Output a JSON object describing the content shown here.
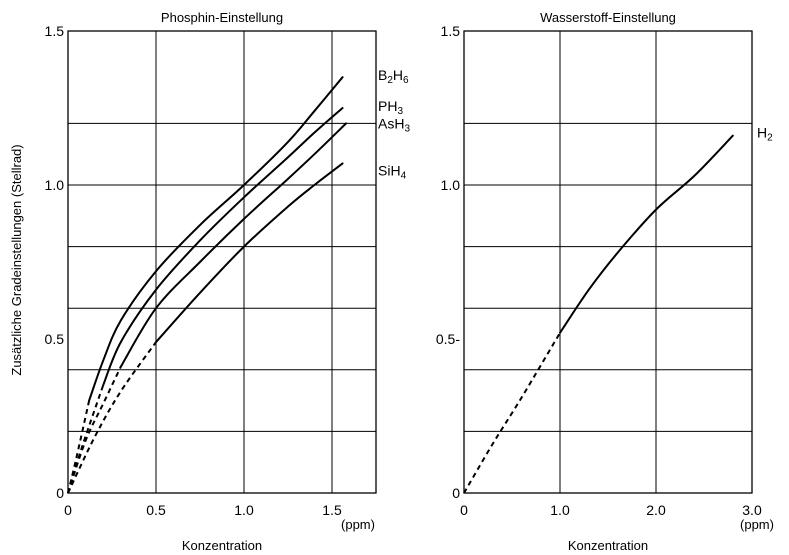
{
  "y_axis_label": "Zusätzliche Gradeinstellungen (Stellrad)",
  "chart_data": [
    {
      "type": "line",
      "title": "Phosphin-Einstellung",
      "xlabel": "Konzentration",
      "x_unit": "(ppm)",
      "ylabel": "Zusätzliche Gradeinstellungen (Stellrad)",
      "xlim": [
        0,
        1.75
      ],
      "ylim": [
        0,
        1.5
      ],
      "x_ticks": [
        {
          "value": 0,
          "label": "0"
        },
        {
          "value": 0.5,
          "label": "0.5"
        },
        {
          "value": 1.0,
          "label": "1.0"
        },
        {
          "value": 1.5,
          "label": "1.5"
        }
      ],
      "y_ticks": [
        {
          "value": 0,
          "label": "0"
        },
        {
          "value": 0.5,
          "label": "0.5"
        },
        {
          "value": 1.0,
          "label": "1.0"
        },
        {
          "value": 1.5,
          "label": "1.5"
        }
      ],
      "grid_y": [
        0.2,
        0.4,
        0.6,
        0.8,
        1.0,
        1.2
      ],
      "grid_x": [
        0.5,
        1.0,
        1.5
      ],
      "grid": true,
      "legend_placement": "right end of each curve",
      "series": [
        {
          "name": "B2H6",
          "label_main": "B",
          "label_sub1": "2",
          "label_mid": "H",
          "label_sub2": "6",
          "dashed_until": 0.12,
          "points": [
            [
              0,
              0
            ],
            [
              0.05,
              0.12
            ],
            [
              0.12,
              0.3
            ],
            [
              0.2,
              0.43
            ],
            [
              0.3,
              0.56
            ],
            [
              0.5,
              0.72
            ],
            [
              0.75,
              0.87
            ],
            [
              1.0,
              1.0
            ],
            [
              1.25,
              1.14
            ],
            [
              1.4,
              1.24
            ],
            [
              1.56,
              1.35
            ]
          ]
        },
        {
          "name": "PH3",
          "label_main": "PH",
          "label_sub1": "3",
          "label_mid": "",
          "label_sub2": "",
          "dashed_until": 0.2,
          "points": [
            [
              0,
              0
            ],
            [
              0.08,
              0.15
            ],
            [
              0.2,
              0.35
            ],
            [
              0.3,
              0.49
            ],
            [
              0.5,
              0.66
            ],
            [
              0.75,
              0.82
            ],
            [
              1.0,
              0.96
            ],
            [
              1.25,
              1.09
            ],
            [
              1.4,
              1.17
            ],
            [
              1.56,
              1.25
            ]
          ]
        },
        {
          "name": "AsH3",
          "label_main": "AsH",
          "label_sub1": "3",
          "label_mid": "",
          "label_sub2": "",
          "dashed_until": 0.3,
          "points": [
            [
              0,
              0
            ],
            [
              0.1,
              0.17
            ],
            [
              0.2,
              0.29
            ],
            [
              0.3,
              0.41
            ],
            [
              0.5,
              0.6
            ],
            [
              0.75,
              0.75
            ],
            [
              1.0,
              0.89
            ],
            [
              1.25,
              1.02
            ],
            [
              1.4,
              1.1
            ],
            [
              1.58,
              1.2
            ]
          ]
        },
        {
          "name": "SiH4",
          "label_main": "SiH",
          "label_sub1": "4",
          "label_mid": "",
          "label_sub2": "",
          "dashed_until": 0.5,
          "points": [
            [
              0,
              0
            ],
            [
              0.15,
              0.18
            ],
            [
              0.3,
              0.33
            ],
            [
              0.5,
              0.49
            ],
            [
              0.75,
              0.65
            ],
            [
              1.0,
              0.8
            ],
            [
              1.25,
              0.93
            ],
            [
              1.4,
              1.0
            ],
            [
              1.56,
              1.07
            ]
          ]
        }
      ]
    },
    {
      "type": "line",
      "title": "Wasserstoff-Einstellung",
      "xlabel": "Konzentration",
      "x_unit": "(ppm)",
      "xlim": [
        0,
        3.0
      ],
      "ylim": [
        0,
        1.5
      ],
      "x_ticks": [
        {
          "value": 0,
          "label": "0"
        },
        {
          "value": 1.0,
          "label": "1.0"
        },
        {
          "value": 2.0,
          "label": "2.0"
        },
        {
          "value": 3.0,
          "label": "3.0"
        }
      ],
      "y_ticks": [
        {
          "value": 0,
          "label": "0"
        },
        {
          "value": 0.5,
          "label": "0.5-"
        },
        {
          "value": 1.0,
          "label": "1.0"
        },
        {
          "value": 1.5,
          "label": "1.5"
        }
      ],
      "grid_y": [
        0.2,
        0.4,
        0.6,
        0.8,
        1.0,
        1.2
      ],
      "grid_x": [
        1.0,
        2.0
      ],
      "grid": true,
      "legend_placement": "right end of curve",
      "series": [
        {
          "name": "H2",
          "label_main": "H",
          "label_sub1": "2",
          "label_mid": "",
          "label_sub2": "",
          "dashed_until": 1.0,
          "points": [
            [
              0,
              0
            ],
            [
              0.3,
              0.16
            ],
            [
              0.6,
              0.31
            ],
            [
              1.0,
              0.52
            ],
            [
              1.3,
              0.66
            ],
            [
              1.6,
              0.78
            ],
            [
              2.0,
              0.92
            ],
            [
              2.4,
              1.03
            ],
            [
              2.8,
              1.16
            ]
          ]
        }
      ]
    }
  ]
}
